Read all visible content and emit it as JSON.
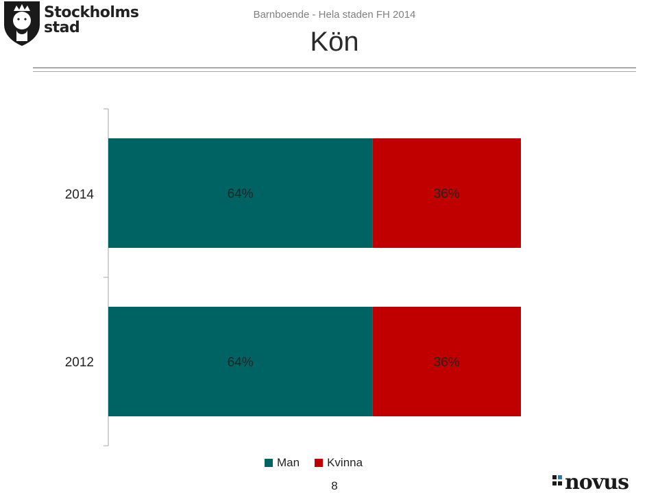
{
  "header": {
    "logo_text_line1": "Stockholms",
    "logo_text_line2": "stad",
    "subtitle": "Barnboende - Hela staden FH 2014",
    "title": "Kön"
  },
  "colors": {
    "man": "#006363",
    "kvinna": "#c00000"
  },
  "chart_data": {
    "type": "bar",
    "orientation": "horizontal",
    "stacked": true,
    "percent": true,
    "categories": [
      "2014",
      "2012"
    ],
    "series": [
      {
        "name": "Man",
        "values": [
          64,
          64
        ],
        "labels": [
          "64%",
          "64%"
        ]
      },
      {
        "name": "Kvinna",
        "values": [
          36,
          36
        ],
        "labels": [
          "36%",
          "36%"
        ]
      }
    ],
    "xlim": [
      0,
      100
    ],
    "grid": false,
    "legend_position": "bottom"
  },
  "legend": {
    "man": "Man",
    "kvinna": "Kvinna"
  },
  "footer": {
    "page_number": "8",
    "brand": "NOVUS"
  }
}
